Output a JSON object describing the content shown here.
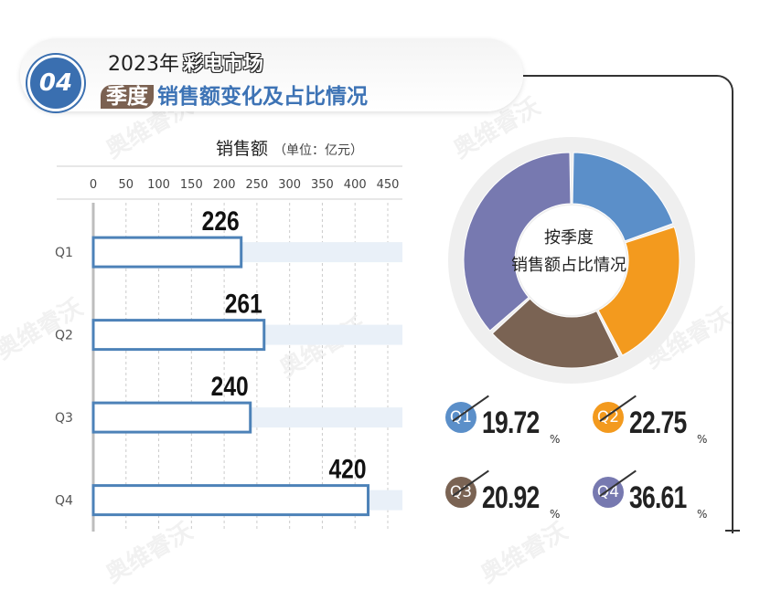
{
  "header": {
    "badge": "04",
    "line1_prefix": "2023年",
    "line1_highlight": "彩电市场",
    "line2_tag": "季度",
    "line2_text": "销售额变化及占比情况"
  },
  "unit_label": "销售额",
  "unit_note": "（单位：亿元）",
  "watermark": "奥维睿沃",
  "pie_center_lines": [
    "按季度",
    "销售额占比情况"
  ],
  "colors": {
    "bar_fill": "#ffffff",
    "bar_stroke": "#4d82b8",
    "band": "#e9f0f8",
    "Q1": "#5b8fc9",
    "Q2": "#f39a1e",
    "Q3": "#7a6353",
    "Q4": "#7779b0"
  },
  "chart_data": [
    {
      "type": "bar",
      "orientation": "horizontal",
      "title": "销售额",
      "categories": [
        "Q1",
        "Q2",
        "Q3",
        "Q4"
      ],
      "values": [
        226,
        261,
        240,
        420
      ],
      "value_labels": [
        "226",
        "261",
        "240",
        "420"
      ],
      "xticks": [
        0,
        50,
        100,
        150,
        200,
        250,
        300,
        350,
        400,
        450
      ],
      "xlim": [
        0,
        450
      ],
      "grid": "vertical-dashed"
    },
    {
      "type": "pie",
      "style": "donut",
      "title": "按季度销售额占比情况",
      "categories": [
        "Q1",
        "Q2",
        "Q3",
        "Q4"
      ],
      "values": [
        19.72,
        22.75,
        20.92,
        36.61
      ],
      "value_labels": [
        "19.72",
        "22.75",
        "20.92",
        "36.61"
      ],
      "unit": "%"
    }
  ]
}
